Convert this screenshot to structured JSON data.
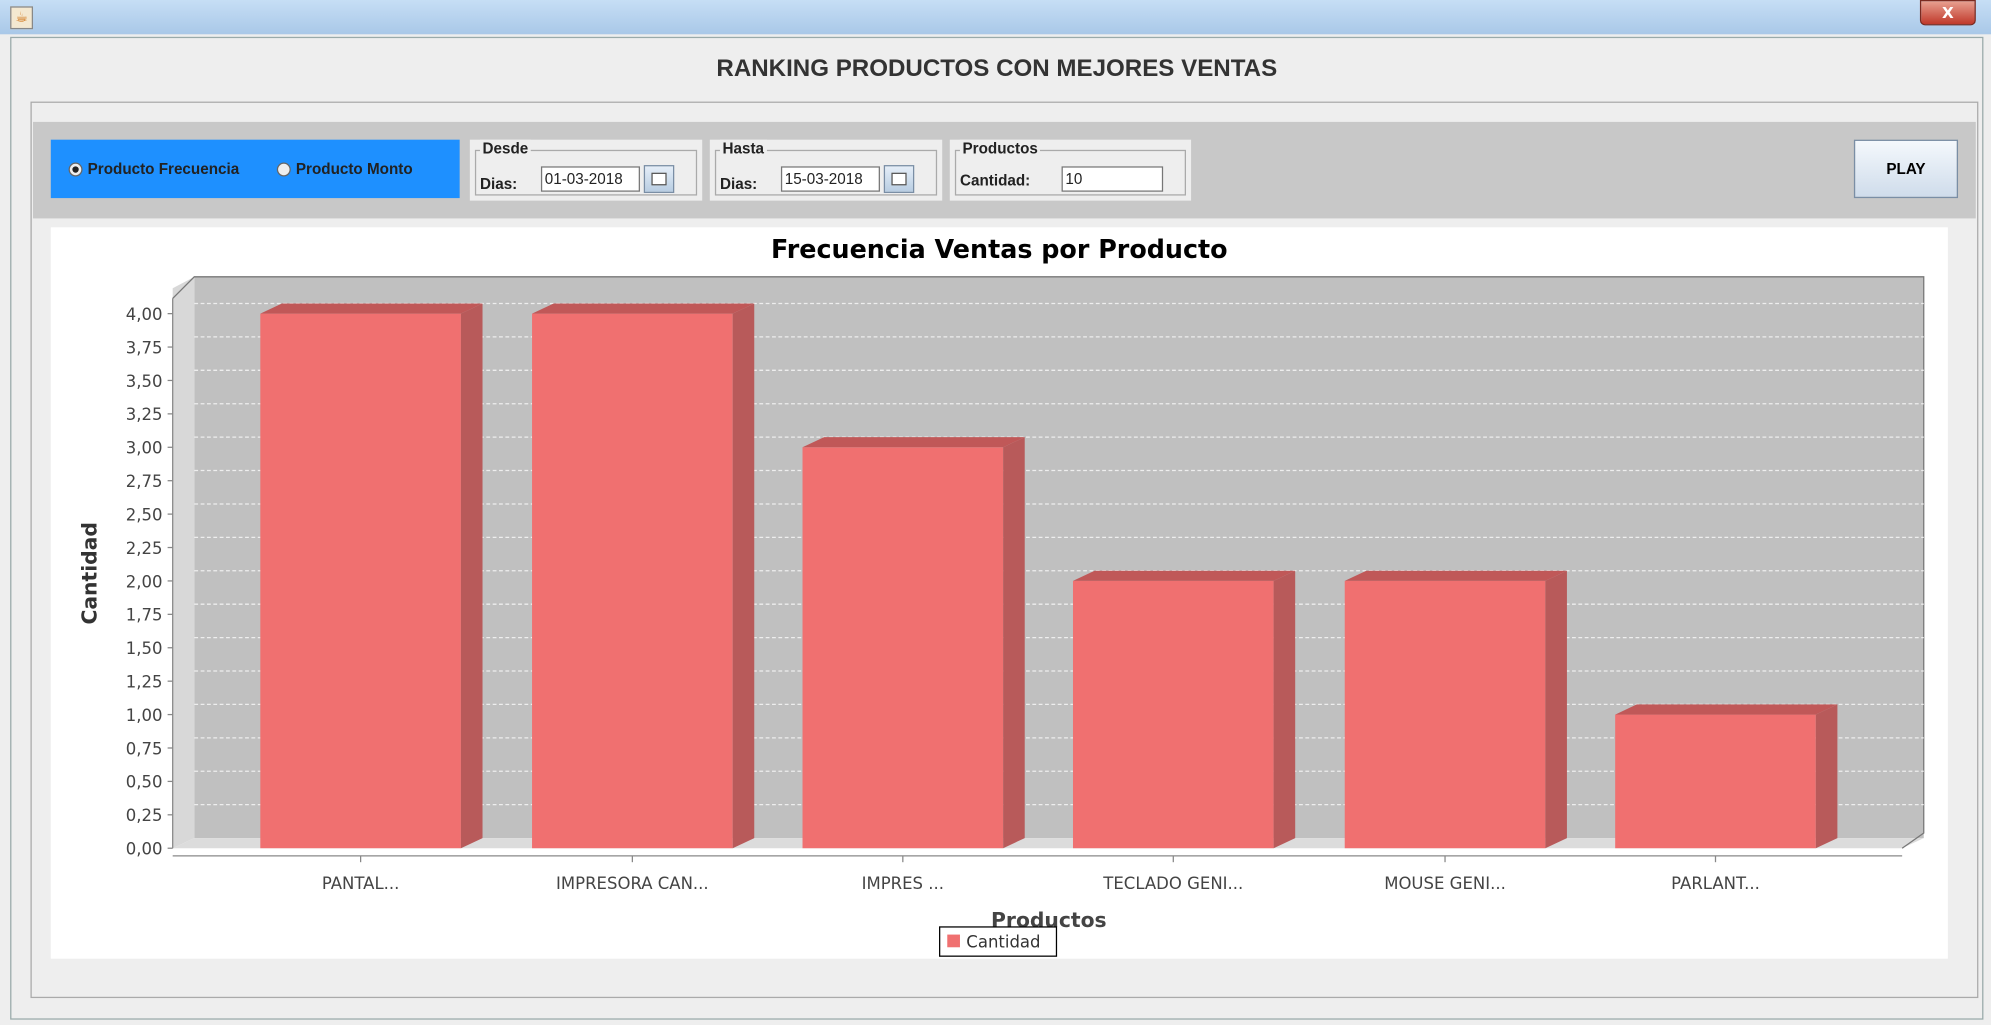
{
  "window": {
    "close_label": "X"
  },
  "header": {
    "title": "RANKING PRODUCTOS CON MEJORES VENTAS"
  },
  "filters": {
    "radio_options": [
      {
        "label": "Producto Frecuencia",
        "selected": true
      },
      {
        "label": "Producto Monto",
        "selected": false
      }
    ],
    "desde": {
      "group_label": "Desde",
      "field_label": "Dias:",
      "value": "01-03-2018"
    },
    "hasta": {
      "group_label": "Hasta",
      "field_label": "Dias:",
      "value": "15-03-2018"
    },
    "productos": {
      "group_label": "Productos",
      "field_label": "Cantidad:",
      "value": "10"
    },
    "play_label": "PLAY",
    "accent_color": "#1e90ff"
  },
  "chart_data": {
    "type": "bar",
    "style": "3d",
    "title": "Frecuencia Ventas por Producto",
    "xlabel": "Productos",
    "ylabel": "Cantidad",
    "ylim": [
      0,
      4
    ],
    "yticks": [
      "0,00",
      "0,25",
      "0,50",
      "0,75",
      "1,00",
      "1,25",
      "1,50",
      "1,75",
      "2,00",
      "2,25",
      "2,50",
      "2,75",
      "3,00",
      "3,25",
      "3,50",
      "3,75",
      "4,00"
    ],
    "categories": [
      "PANTAL...",
      "IMPRESORA CAN...",
      "IMPRES ...",
      "TECLADO GENI...",
      "MOUSE GENI...",
      "PARLANT..."
    ],
    "series": [
      {
        "name": "Cantidad",
        "values": [
          4,
          4,
          3,
          2,
          2,
          1
        ],
        "color": "#f07070"
      }
    ],
    "grid": true,
    "legend": "bottom"
  }
}
